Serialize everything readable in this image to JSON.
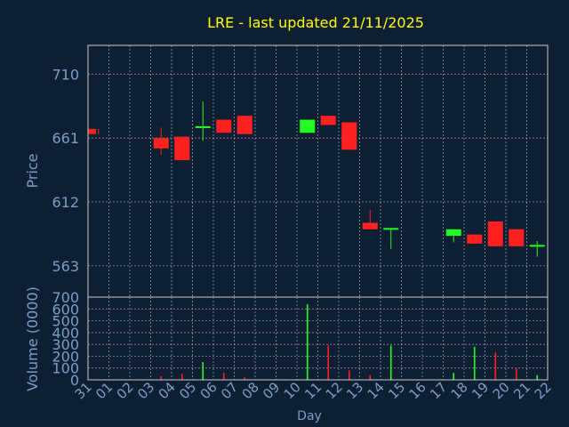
{
  "chart_data": [
    {
      "type": "candlestick",
      "title": "LRE - last updated 21/11/2025",
      "ylabel": "Price",
      "ylim": [
        539,
        732
      ],
      "yticks": [
        563,
        612,
        661,
        710
      ],
      "grid": true,
      "x_categories": [
        "31",
        "01",
        "02",
        "03",
        "04",
        "05",
        "06",
        "07",
        "08",
        "09",
        "10",
        "11",
        "12",
        "13",
        "14",
        "15",
        "16",
        "17",
        "18",
        "19",
        "20",
        "21",
        "22"
      ],
      "candles": [
        {
          "day": "31",
          "open": 668,
          "high": 668,
          "low": 664,
          "close": 664
        },
        {
          "day": "03",
          "open": 661,
          "high": 669,
          "low": 648,
          "close": 653
        },
        {
          "day": "04",
          "open": 662,
          "high": 662,
          "low": 644,
          "close": 644
        },
        {
          "day": "05",
          "open": 669,
          "high": 689,
          "low": 659,
          "close": 670
        },
        {
          "day": "06",
          "open": 675,
          "high": 675,
          "low": 665,
          "close": 665
        },
        {
          "day": "07",
          "open": 678,
          "high": 678,
          "low": 664,
          "close": 664
        },
        {
          "day": "10",
          "open": 665,
          "high": 675,
          "low": 665,
          "close": 675
        },
        {
          "day": "11",
          "open": 678,
          "high": 678,
          "low": 671,
          "close": 671
        },
        {
          "day": "12",
          "open": 673,
          "high": 673,
          "low": 652,
          "close": 652
        },
        {
          "day": "13",
          "open": 596,
          "high": 606,
          "low": 591,
          "close": 591
        },
        {
          "day": "14",
          "open": 591,
          "high": 592,
          "low": 576,
          "close": 592
        },
        {
          "day": "17",
          "open": 586,
          "high": 591,
          "low": 581,
          "close": 591
        },
        {
          "day": "18",
          "open": 587,
          "high": 587,
          "low": 580,
          "close": 580
        },
        {
          "day": "19",
          "open": 597,
          "high": 597,
          "low": 578,
          "close": 578
        },
        {
          "day": "20",
          "open": 591,
          "high": 591,
          "low": 578,
          "close": 578
        },
        {
          "day": "21",
          "open": 578,
          "high": 582,
          "low": 570,
          "close": 579
        }
      ]
    },
    {
      "type": "bar",
      "ylabel": "Volume (0000)",
      "xlabel": "Day",
      "ylim": [
        0,
        700
      ],
      "yticks": [
        0,
        100,
        200,
        300,
        400,
        500,
        600,
        700
      ],
      "grid": true,
      "categories": [
        "31",
        "01",
        "02",
        "03",
        "04",
        "05",
        "06",
        "07",
        "08",
        "09",
        "10",
        "11",
        "12",
        "13",
        "14",
        "15",
        "16",
        "17",
        "18",
        "19",
        "20",
        "21",
        "22"
      ],
      "volumes": [
        {
          "day": "03",
          "value": 30,
          "color": "#ff2020"
        },
        {
          "day": "04",
          "value": 50,
          "color": "#ff2020"
        },
        {
          "day": "05",
          "value": 150,
          "color": "#20ff20"
        },
        {
          "day": "06",
          "value": 60,
          "color": "#ff2020"
        },
        {
          "day": "07",
          "value": 20,
          "color": "#ff2020"
        },
        {
          "day": "10",
          "value": 640,
          "color": "#20ff20"
        },
        {
          "day": "11",
          "value": 290,
          "color": "#ff2020"
        },
        {
          "day": "12",
          "value": 80,
          "color": "#ff2020"
        },
        {
          "day": "13",
          "value": 40,
          "color": "#ff2020"
        },
        {
          "day": "14",
          "value": 290,
          "color": "#20ff20"
        },
        {
          "day": "17",
          "value": 60,
          "color": "#20ff20"
        },
        {
          "day": "18",
          "value": 280,
          "color": "#20ff20"
        },
        {
          "day": "19",
          "value": 230,
          "color": "#ff2020"
        },
        {
          "day": "20",
          "value": 100,
          "color": "#ff2020"
        },
        {
          "day": "21",
          "value": 40,
          "color": "#20ff20"
        }
      ]
    }
  ],
  "colors": {
    "background": "#0f1f33",
    "title": "#ffff00",
    "axis_text": "#7a9fc7",
    "grid": "#c8c8c8",
    "frame": "#c8c8c8",
    "up": "#20ff20",
    "down": "#ff2020"
  }
}
